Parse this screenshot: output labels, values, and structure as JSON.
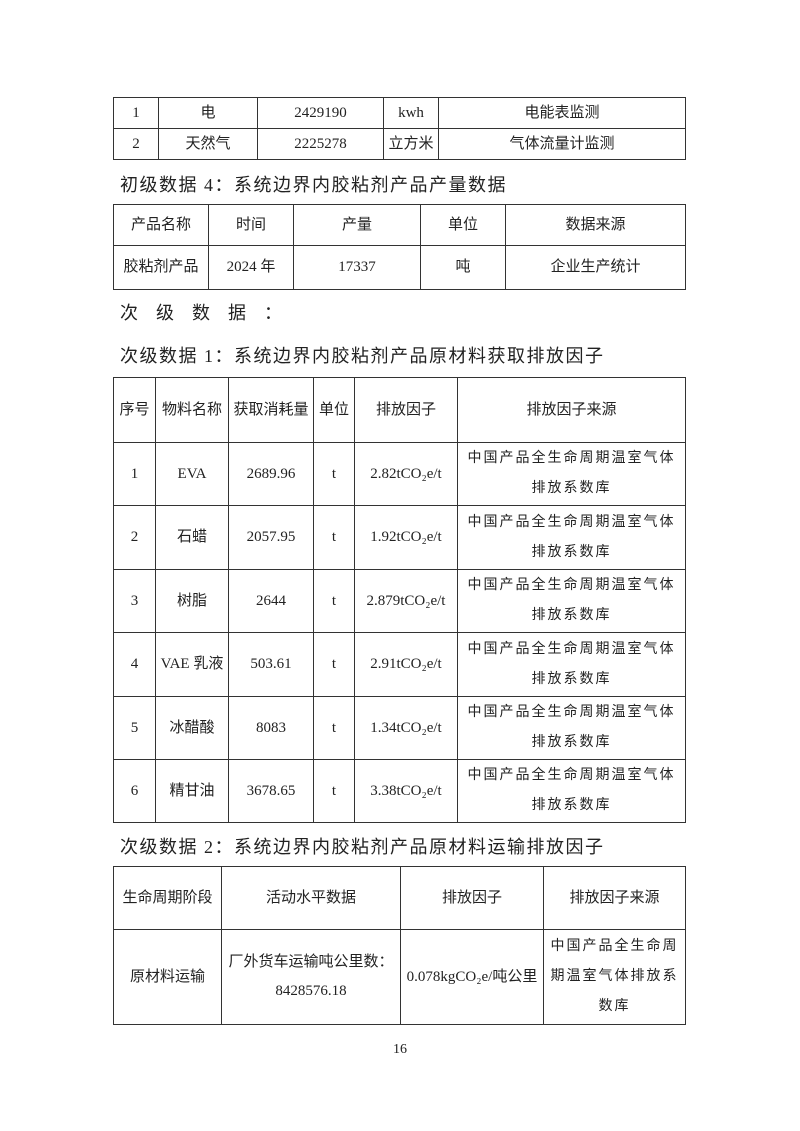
{
  "table_energy": {
    "rows": [
      [
        "1",
        "电",
        "2429190",
        "kwh",
        "电能表监测"
      ],
      [
        "2",
        "天然气",
        "2225278",
        "立方米",
        "气体流量计监测"
      ]
    ]
  },
  "heading_primary4": "初级数据 4：系统边界内胶粘剂产品产量数据",
  "table_output": {
    "headers": [
      "产品名称",
      "时间",
      "产量",
      "单位",
      "数据来源"
    ],
    "rows": [
      [
        "胶粘剂产品",
        "2024 年",
        "17337",
        "吨",
        "企业生产统计"
      ]
    ]
  },
  "heading_secondary": "次级数据：",
  "heading_secondary1": "次级数据 1：系统边界内胶粘剂产品原材料获取排放因子",
  "table_materials": {
    "headers": [
      "序号",
      "物料名称",
      "获取消耗量",
      "单位",
      "排放因子",
      "排放因子来源"
    ],
    "rows": [
      [
        "1",
        "EVA",
        "2689.96",
        "t",
        "2.82tCO₂e/t",
        "中国产品全生命周期温室气体排放系数库"
      ],
      [
        "2",
        "石蜡",
        "2057.95",
        "t",
        "1.92tCO₂e/t",
        "中国产品全生命周期温室气体排放系数库"
      ],
      [
        "3",
        "树脂",
        "2644",
        "t",
        "2.879tCO₂e/t",
        "中国产品全生命周期温室气体排放系数库"
      ],
      [
        "4",
        "VAE 乳液",
        "503.61",
        "t",
        "2.91tCO₂e/t",
        "中国产品全生命周期温室气体排放系数库"
      ],
      [
        "5",
        "冰醋酸",
        "8083",
        "t",
        "1.34tCO₂e/t",
        "中国产品全生命周期温室气体排放系数库"
      ],
      [
        "6",
        "精甘油",
        "3678.65",
        "t",
        "3.38tCO₂e/t",
        "中国产品全生命周期温室气体排放系数库"
      ]
    ]
  },
  "heading_secondary2": "次级数据 2：系统边界内胶粘剂产品原材料运输排放因子",
  "table_transport": {
    "headers": [
      "生命周期阶段",
      "活动水平数据",
      "排放因子",
      "排放因子来源"
    ],
    "rows": [
      [
        "原材料运输",
        "厂外货车运输吨公里数：8428576.18",
        "0.078kgCO₂e/吨公里",
        "中国产品全生命周期温室气体排放系数库"
      ]
    ]
  },
  "page_number": "16"
}
